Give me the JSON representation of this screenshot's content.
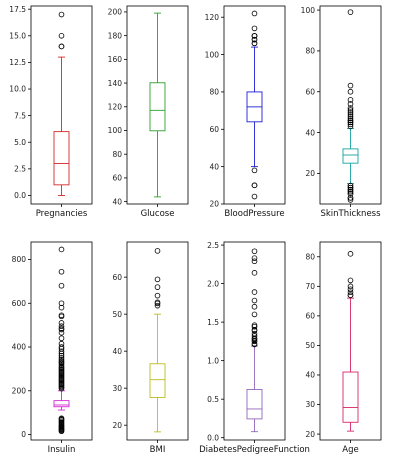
{
  "chart_data": [
    {
      "type": "box",
      "xlabel": "Pregnancies",
      "color": "#d62728",
      "ylim": [
        -0.8,
        17.8
      ],
      "yticks": [
        0.0,
        2.5,
        5.0,
        7.5,
        10.0,
        12.5,
        15.0,
        17.5
      ],
      "ytick_labels": [
        "0.0",
        "2.5",
        "5.0",
        "7.5",
        "10.0",
        "12.5",
        "15.0",
        "17.5"
      ],
      "whisker_low": 0,
      "q1": 1,
      "median": 3,
      "q3": 6,
      "whisker_high": 13,
      "outliers": [
        14,
        14,
        15,
        17
      ]
    },
    {
      "type": "box",
      "xlabel": "Glucose",
      "color": "#2ca02c",
      "ylim": [
        38,
        205
      ],
      "yticks": [
        40,
        60,
        80,
        100,
        120,
        140,
        160,
        180,
        200
      ],
      "ytick_labels": [
        "40",
        "60",
        "80",
        "100",
        "120",
        "140",
        "160",
        "180",
        "200"
      ],
      "whisker_low": 44,
      "q1": 99.75,
      "median": 117,
      "q3": 140.25,
      "whisker_high": 199,
      "outliers": []
    },
    {
      "type": "box",
      "xlabel": "BloodPressure",
      "color": "#1f1fd6",
      "ylim": [
        20,
        126
      ],
      "yticks": [
        20,
        40,
        60,
        80,
        100,
        120
      ],
      "ytick_labels": [
        "20",
        "40",
        "60",
        "80",
        "100",
        "120"
      ],
      "whisker_low": 40,
      "q1": 64,
      "median": 72,
      "q3": 80,
      "whisker_high": 104,
      "outliers": [
        24,
        30,
        30,
        38,
        106,
        106,
        108,
        108,
        110,
        110,
        110,
        114,
        122
      ]
    },
    {
      "type": "box",
      "xlabel": "SkinThickness",
      "color": "#17a2a2",
      "ylim": [
        5,
        102
      ],
      "yticks": [
        20,
        40,
        60,
        80,
        100
      ],
      "ytick_labels": [
        "20",
        "40",
        "60",
        "80",
        "100"
      ],
      "whisker_low": 15,
      "q1": 25,
      "median": 29,
      "q3": 32,
      "whisker_high": 42,
      "outliers": [
        7,
        8,
        8,
        10,
        10,
        11,
        11,
        12,
        12,
        13,
        13,
        14,
        14,
        43,
        44,
        45,
        45,
        46,
        46,
        47,
        48,
        49,
        50,
        51,
        52,
        54,
        56,
        60,
        63,
        99
      ]
    },
    {
      "type": "box",
      "xlabel": "Insulin",
      "color": "#d62ad6",
      "ylim": [
        -25,
        880
      ],
      "yticks": [
        0,
        200,
        400,
        600,
        800
      ],
      "ytick_labels": [
        "0",
        "200",
        "400",
        "600",
        "800"
      ],
      "whisker_low": 112,
      "q1": 127,
      "median": 135,
      "q3": 155,
      "whisker_high": 200,
      "outliers": [
        15,
        18,
        22,
        25,
        28,
        32,
        36,
        40,
        44,
        50,
        55,
        60,
        66,
        70,
        74,
        210,
        215,
        220,
        225,
        230,
        235,
        240,
        245,
        250,
        255,
        260,
        265,
        270,
        275,
        280,
        285,
        290,
        295,
        300,
        305,
        310,
        318,
        325,
        330,
        335,
        342,
        350,
        360,
        370,
        380,
        392,
        400,
        415,
        440,
        465,
        480,
        485,
        495,
        510,
        540,
        545,
        580,
        600,
        680,
        744,
        846
      ]
    },
    {
      "type": "box",
      "xlabel": "BMI",
      "color": "#bcbd22",
      "ylim": [
        16,
        69.5
      ],
      "yticks": [
        20,
        30,
        40,
        50,
        60
      ],
      "ytick_labels": [
        "20",
        "30",
        "40",
        "50",
        "60"
      ],
      "whisker_low": 18.2,
      "q1": 27.5,
      "median": 32.3,
      "q3": 36.6,
      "whisker_high": 50,
      "outliers": [
        52.3,
        52.9,
        53.2,
        55,
        57.3,
        59.4,
        67.1
      ]
    },
    {
      "type": "box",
      "xlabel": "DiabetesPedigreeFunction",
      "color": "#9467bd",
      "ylim": [
        -0.03,
        2.54
      ],
      "yticks": [
        0.0,
        0.5,
        1.0,
        1.5,
        2.0,
        2.5
      ],
      "ytick_labels": [
        "0.0",
        "0.5",
        "1.0",
        "1.5",
        "2.0",
        "2.5"
      ],
      "whisker_low": 0.078,
      "q1": 0.244,
      "median": 0.373,
      "q3": 0.626,
      "whisker_high": 1.19,
      "outliers": [
        1.21,
        1.22,
        1.25,
        1.26,
        1.28,
        1.29,
        1.32,
        1.35,
        1.39,
        1.4,
        1.44,
        1.46,
        1.6,
        1.7,
        1.78,
        1.89,
        2.14,
        2.29,
        2.33,
        2.42
      ]
    },
    {
      "type": "box",
      "xlabel": "Age",
      "color": "#d62768",
      "ylim": [
        18,
        85
      ],
      "yticks": [
        20,
        30,
        40,
        50,
        60,
        70,
        80
      ],
      "ytick_labels": [
        "20",
        "30",
        "40",
        "50",
        "60",
        "70",
        "80"
      ],
      "whisker_low": 21,
      "q1": 24,
      "median": 29,
      "q3": 41,
      "whisker_high": 66,
      "outliers": [
        67,
        67,
        68,
        69,
        70,
        72,
        81
      ]
    }
  ]
}
